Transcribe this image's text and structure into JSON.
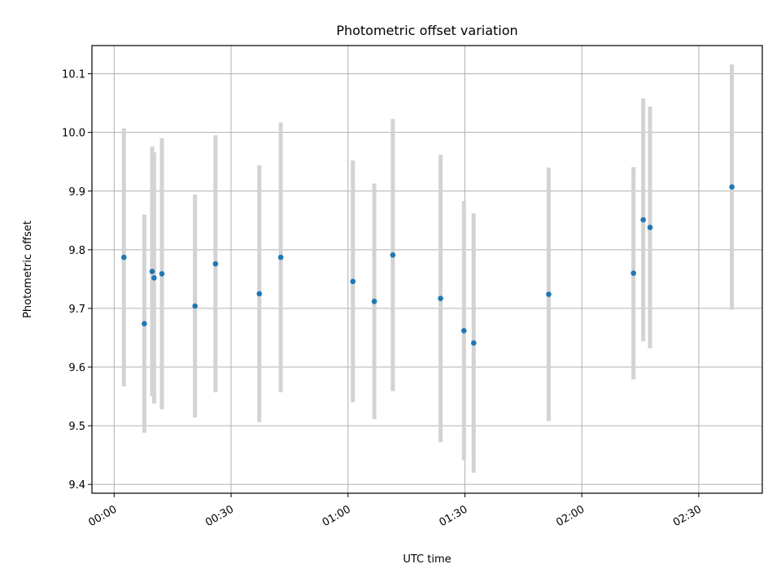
{
  "chart_data": {
    "type": "scatter",
    "title": "Photometric offset variation",
    "xlabel": "UTC time",
    "ylabel": "Photometric offset",
    "x_ticks": [
      "00:00",
      "00:30",
      "01:00",
      "01:30",
      "02:00",
      "02:30"
    ],
    "y_ticks": [
      "9.4",
      "9.5",
      "9.6",
      "9.7",
      "9.8",
      "9.9",
      "10.0",
      "10.1"
    ],
    "x_range_minutes": [
      -5.7,
      166.3
    ],
    "ylim": [
      9.385,
      10.148
    ],
    "grid": true,
    "colors": {
      "point": "#1f77b4",
      "errorbar": "#d3d3d3",
      "grid": "#b0b0b0"
    },
    "points": [
      {
        "t": "00:02:30",
        "y": 9.787,
        "err": 0.22
      },
      {
        "t": "00:07:45",
        "y": 9.674,
        "err": 0.186
      },
      {
        "t": "00:09:45",
        "y": 9.763,
        "err": 0.213
      },
      {
        "t": "00:10:15",
        "y": 9.752,
        "err": 0.214
      },
      {
        "t": "00:12:15",
        "y": 9.759,
        "err": 0.231
      },
      {
        "t": "00:20:45",
        "y": 9.704,
        "err": 0.19
      },
      {
        "t": "00:26:00",
        "y": 9.776,
        "err": 0.219
      },
      {
        "t": "00:37:15",
        "y": 9.725,
        "err": 0.219
      },
      {
        "t": "00:42:45",
        "y": 9.787,
        "err": 0.23
      },
      {
        "t": "01:01:15",
        "y": 9.746,
        "err": 0.206
      },
      {
        "t": "01:06:45",
        "y": 9.712,
        "err": 0.201
      },
      {
        "t": "01:11:30",
        "y": 9.791,
        "err": 0.232
      },
      {
        "t": "01:23:45",
        "y": 9.717,
        "err": 0.245
      },
      {
        "t": "01:29:45",
        "y": 9.662,
        "err": 0.221
      },
      {
        "t": "01:32:15",
        "y": 9.641,
        "err": 0.221
      },
      {
        "t": "01:51:30",
        "y": 9.724,
        "err": 0.216
      },
      {
        "t": "02:13:15",
        "y": 9.76,
        "err": 0.181
      },
      {
        "t": "02:15:45",
        "y": 9.851,
        "err": 0.207
      },
      {
        "t": "02:17:30",
        "y": 9.838,
        "err": 0.206
      },
      {
        "t": "02:38:30",
        "y": 9.907,
        "err": 0.209
      }
    ]
  }
}
